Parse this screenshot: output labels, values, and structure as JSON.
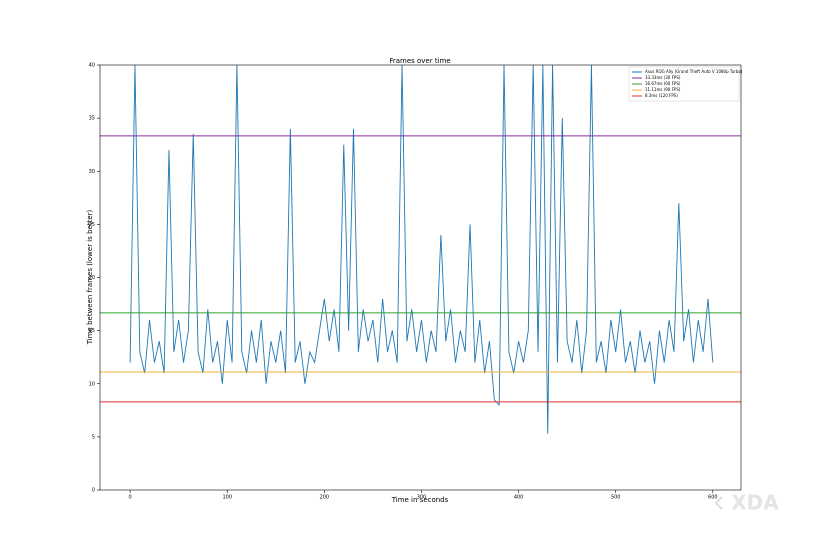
{
  "chart_data": {
    "type": "line",
    "title": "Frames over time",
    "xlabel": "Time in seconds",
    "ylabel": "Time between frames (lower is better)",
    "xlim": [
      -31,
      629
    ],
    "ylim": [
      0,
      40
    ],
    "xticks": [
      0,
      100,
      200,
      300,
      400,
      500,
      600
    ],
    "yticks": [
      0,
      5,
      10,
      15,
      20,
      25,
      30,
      35,
      40
    ],
    "legend_position": "upper right",
    "series": [
      {
        "name": "Asus ROG Ally (Grand Theft Auto V 1080p Turbo)",
        "color": "#1f77b4",
        "x": [
          0,
          5,
          10,
          15,
          20,
          25,
          30,
          35,
          40,
          45,
          50,
          55,
          60,
          65,
          70,
          75,
          80,
          85,
          90,
          95,
          100,
          105,
          110,
          115,
          120,
          125,
          130,
          135,
          140,
          145,
          150,
          155,
          160,
          165,
          170,
          175,
          180,
          185,
          190,
          195,
          200,
          205,
          210,
          215,
          220,
          225,
          230,
          235,
          240,
          245,
          250,
          255,
          260,
          265,
          270,
          275,
          280,
          285,
          290,
          295,
          300,
          305,
          310,
          315,
          320,
          325,
          330,
          335,
          340,
          345,
          350,
          355,
          360,
          365,
          370,
          375,
          380,
          385,
          390,
          395,
          400,
          405,
          410,
          415,
          420,
          425,
          430,
          435,
          440,
          445,
          450,
          455,
          460,
          465,
          470,
          475,
          480,
          485,
          490,
          495,
          500,
          505,
          510,
          515,
          520,
          525,
          530,
          535,
          540,
          545,
          550,
          555,
          560,
          565,
          570,
          575,
          580,
          585,
          590,
          595,
          600
        ],
        "values": [
          12,
          40,
          13,
          11,
          16,
          12,
          14,
          11,
          32,
          13,
          16,
          12,
          15,
          33.5,
          13,
          11,
          17,
          12,
          14,
          10,
          16,
          12,
          40,
          13,
          11,
          15,
          12,
          16,
          10,
          14,
          12,
          15,
          11,
          34,
          12,
          14,
          10,
          13,
          12,
          15,
          18,
          14,
          17,
          13,
          32.5,
          15,
          34,
          13,
          17,
          14,
          16,
          12,
          18,
          13,
          15,
          12,
          40,
          14,
          17,
          13,
          16,
          12,
          15,
          13,
          24,
          14,
          17,
          12,
          15,
          13,
          25,
          12,
          16,
          11,
          14,
          8.5,
          8,
          40,
          13,
          11,
          14,
          12,
          15,
          40,
          13,
          40,
          5.3,
          40,
          12,
          35,
          14,
          12,
          16,
          11,
          15,
          40,
          12,
          14,
          11,
          16,
          13,
          17,
          12,
          14,
          11,
          15,
          12,
          14,
          10,
          15,
          12,
          16,
          13,
          27,
          14,
          17,
          12,
          16,
          13,
          18,
          12
        ]
      }
    ],
    "hlines": [
      {
        "name": "33.33ms (30 FPS)",
        "color": "#8b2c9e",
        "value": 33.33
      },
      {
        "name": "16.67ms (60 FPS)",
        "color": "#2ca02c",
        "value": 16.67
      },
      {
        "name": "11.11ms (90 FPS)",
        "color": "#f0b030",
        "value": 11.11
      },
      {
        "name": "8.3ms (120 FPS)",
        "color": "#e03030",
        "value": 8.3
      }
    ],
    "watermark": "XDA"
  }
}
